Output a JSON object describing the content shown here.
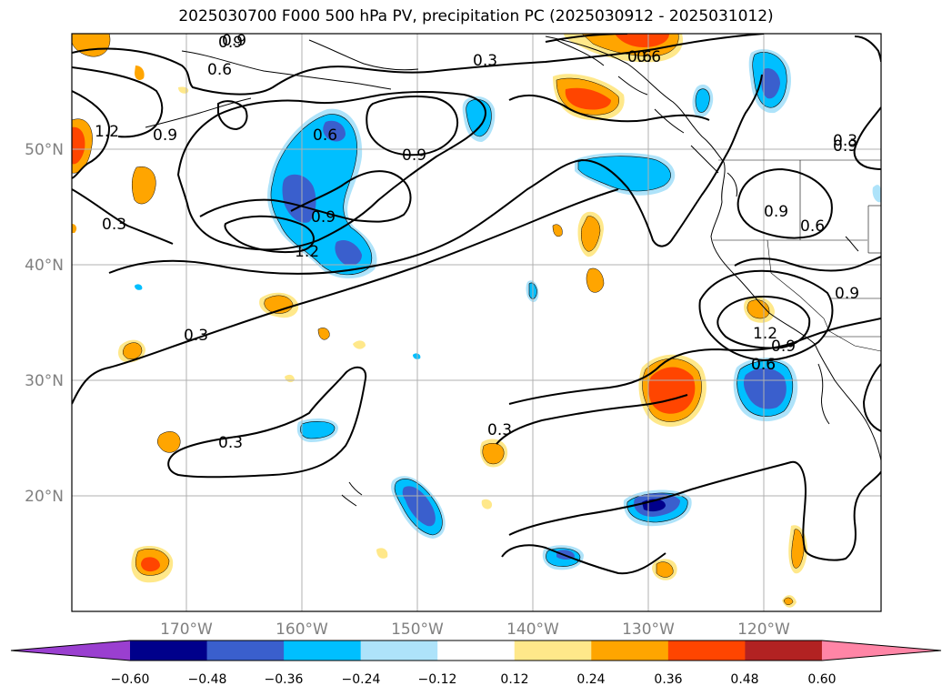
{
  "title": "2025030700 F000 500 hPa PV, precipitation PC (2025030912 - 2025031012)",
  "map": {
    "lat_labels": [
      "50°N",
      "40°N",
      "30°N",
      "20°N"
    ],
    "lon_labels": [
      "170°W",
      "160°W",
      "150°W",
      "140°W",
      "130°W",
      "120°W"
    ],
    "grid": true,
    "extent": {
      "lon_min": -180,
      "lon_max": -110,
      "lat_min": 10,
      "lat_max": 60
    },
    "contour_labels": [
      "0.9",
      "0.6",
      "0.3",
      "0.6",
      "1.2",
      "0.9",
      "0.6",
      "0.9",
      "0.9",
      "0.3",
      "1.2",
      "0.9",
      "0.6",
      "0.3",
      "0.3",
      "0.3",
      "0.3",
      "0.9",
      "0.9",
      "0.6",
      "0.6",
      "0.9",
      "1.2",
      "0.6",
      "0.9"
    ]
  },
  "colorbar": {
    "tick_labels": [
      "−0.60",
      "−0.48",
      "−0.36",
      "−0.24",
      "−0.12",
      "0.12",
      "0.24",
      "0.36",
      "0.48",
      "0.60"
    ],
    "colors": [
      "#9a3fd0",
      "#00008b",
      "#3a5fcd",
      "#00bfff",
      "#aee3fa",
      "#ffffff",
      "#ffe88a",
      "#ffa500",
      "#ff4500",
      "#b22222",
      "#ff85a6"
    ],
    "extend": "both"
  }
}
